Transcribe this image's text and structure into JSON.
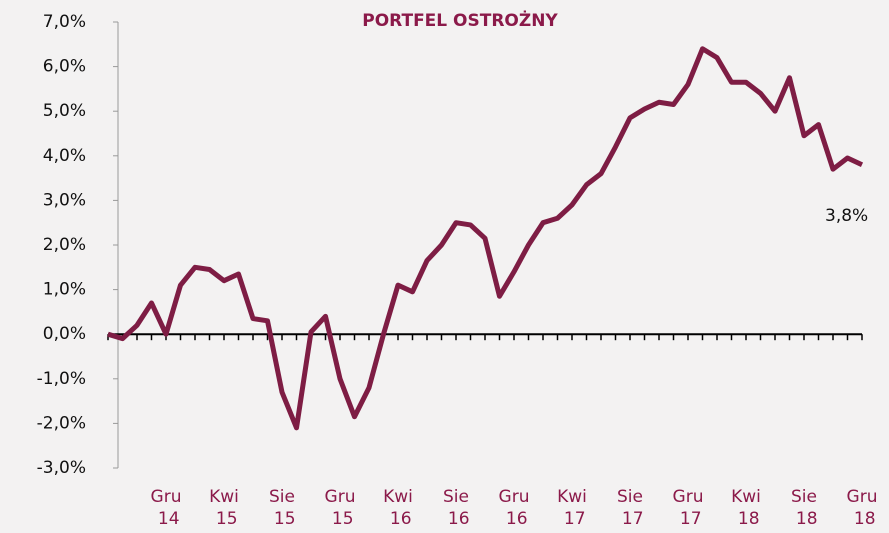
{
  "chart_data": {
    "type": "line",
    "title": "PORTFEL OSTROŻNY",
    "categories": [
      null,
      null,
      null,
      null,
      "Gru 14",
      null,
      null,
      null,
      "Kwi 15",
      null,
      null,
      null,
      "Sie 15",
      null,
      null,
      null,
      "Gru 15",
      null,
      null,
      null,
      "Kwi 16",
      null,
      null,
      null,
      "Sie 16",
      null,
      null,
      null,
      "Gru 16",
      null,
      null,
      null,
      "Kwi 17",
      null,
      null,
      null,
      "Sie 17",
      null,
      null,
      null,
      "Gru 17",
      null,
      null,
      null,
      "Kwi 18",
      null,
      null,
      null,
      "Sie 18",
      null,
      null,
      null,
      "Gru 18"
    ],
    "series": [
      {
        "name": "PORTFEL OSTROŻNY",
        "color": "#7e1d44",
        "values": [
          0.0,
          -0.1,
          0.2,
          0.7,
          0.0,
          1.1,
          1.5,
          1.45,
          1.2,
          1.35,
          0.35,
          0.3,
          -1.3,
          -2.1,
          0.05,
          0.4,
          -1.0,
          -1.85,
          -1.2,
          0.0,
          1.1,
          0.95,
          1.65,
          2.0,
          2.5,
          2.45,
          2.15,
          0.85,
          1.4,
          2.0,
          2.5,
          2.6,
          2.9,
          3.35,
          3.6,
          4.2,
          4.85,
          5.05,
          5.2,
          5.15,
          5.6,
          6.4,
          6.2,
          5.65,
          5.65,
          5.4,
          5.0,
          5.75,
          4.45,
          4.7,
          3.7,
          3.95,
          3.8
        ]
      }
    ],
    "annotation": {
      "value": 3.8,
      "label": "3,8%"
    },
    "ylim": [
      -3,
      7
    ],
    "yticks": [
      {
        "value": -3,
        "label": "-3,0%"
      },
      {
        "value": -2,
        "label": "-2,0%"
      },
      {
        "value": -1,
        "label": "-1,0%"
      },
      {
        "value": 0,
        "label": "0,0%"
      },
      {
        "value": 1,
        "label": "1,0%"
      },
      {
        "value": 2,
        "label": "2,0%"
      },
      {
        "value": 3,
        "label": "3,0%"
      },
      {
        "value": 4,
        "label": "4,0%"
      },
      {
        "value": 5,
        "label": "5,0%"
      },
      {
        "value": 6,
        "label": "6,0%"
      },
      {
        "value": 7,
        "label": "7,0%"
      }
    ],
    "grid": false
  }
}
